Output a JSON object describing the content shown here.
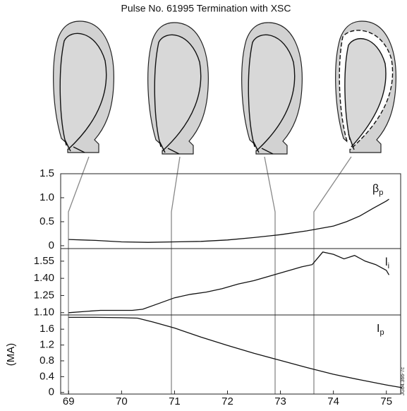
{
  "title": "Pulse No. 61995 Termination with XSC",
  "figure_id": "JG04.366-7c",
  "chart_data": [
    {
      "type": "line",
      "label": "β",
      "label_sub": "p",
      "xlim": [
        68.85,
        75.27
      ],
      "ylim": [
        -0.06,
        1.5
      ],
      "yticks": [
        {
          "value": 1.5,
          "label": "1.5"
        },
        {
          "value": 1,
          "label": "1.0"
        },
        0.5,
        0
      ],
      "x": [
        69,
        69.5,
        70,
        70.5,
        71,
        71.5,
        72,
        72.5,
        73,
        73.5,
        74,
        74.25,
        74.5,
        74.75,
        75,
        75.05
      ],
      "series": [
        {
          "color": "#111111",
          "values": [
            0.13,
            0.11,
            0.08,
            0.07,
            0.08,
            0.09,
            0.12,
            0.17,
            0.23,
            0.31,
            0.41,
            0.5,
            0.62,
            0.78,
            0.93,
            0.97
          ]
        }
      ]
    },
    {
      "type": "line",
      "label": "l",
      "label_sub": "i",
      "xlim": [
        68.85,
        75.27
      ],
      "ylim": [
        1.08,
        1.66
      ],
      "yticks": [
        1.55,
        {
          "value": 1.4,
          "label": "1.40"
        },
        1.25,
        {
          "value": 1.1,
          "label": "1.10"
        }
      ],
      "x": [
        69,
        69.3,
        69.6,
        69.9,
        70.2,
        70.4,
        70.7,
        71,
        71.3,
        71.6,
        71.9,
        72.2,
        72.5,
        72.8,
        73.1,
        73.4,
        73.6,
        73.8,
        74,
        74.2,
        74.4,
        74.6,
        74.8,
        75,
        75.05
      ],
      "series": [
        {
          "color": "#111111",
          "values": [
            1.1,
            1.11,
            1.12,
            1.12,
            1.12,
            1.13,
            1.18,
            1.23,
            1.26,
            1.28,
            1.31,
            1.35,
            1.38,
            1.42,
            1.46,
            1.5,
            1.52,
            1.63,
            1.61,
            1.57,
            1.6,
            1.55,
            1.52,
            1.47,
            1.43
          ]
        }
      ]
    },
    {
      "type": "line",
      "label": "I",
      "label_sub": "p",
      "ylabel": "(MA)",
      "xlim": [
        68.85,
        75.27
      ],
      "ylim": [
        -0.04,
        1.96
      ],
      "yticks": [
        1.6,
        1.2,
        0.8,
        0.4,
        0
      ],
      "xticks": [
        69,
        70,
        71,
        72,
        73,
        74,
        75
      ],
      "x": [
        69,
        69.5,
        70,
        70.3,
        70.6,
        71,
        71.5,
        72,
        72.5,
        73,
        73.5,
        74,
        74.5,
        75,
        75.3
      ],
      "series": [
        {
          "color": "#111111",
          "values": [
            1.9,
            1.9,
            1.89,
            1.88,
            1.78,
            1.63,
            1.4,
            1.19,
            0.99,
            0.81,
            0.63,
            0.46,
            0.32,
            0.19,
            0.12
          ]
        }
      ]
    }
  ]
}
